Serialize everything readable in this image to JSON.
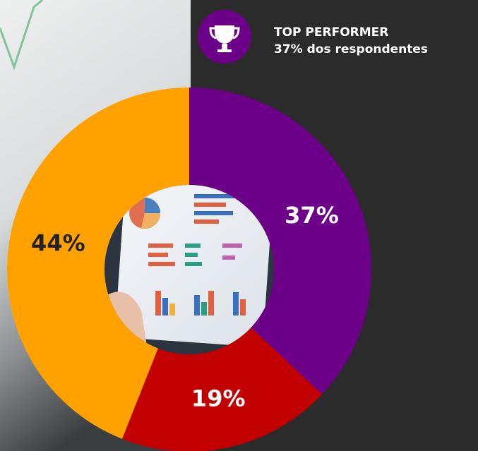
{
  "chart_data": {
    "type": "donut",
    "values": [
      37,
      19,
      44
    ],
    "value_labels": [
      "37%",
      "19%",
      "44%"
    ],
    "colors": [
      "#6c0088",
      "#c20000",
      "#ffa200"
    ],
    "label_colors": [
      "#ffffff",
      "#ffffff",
      "#222222"
    ],
    "legend": {
      "title": "TOP PERFORMER",
      "text": "37% dos respondentes",
      "color": "#6c0088"
    }
  }
}
